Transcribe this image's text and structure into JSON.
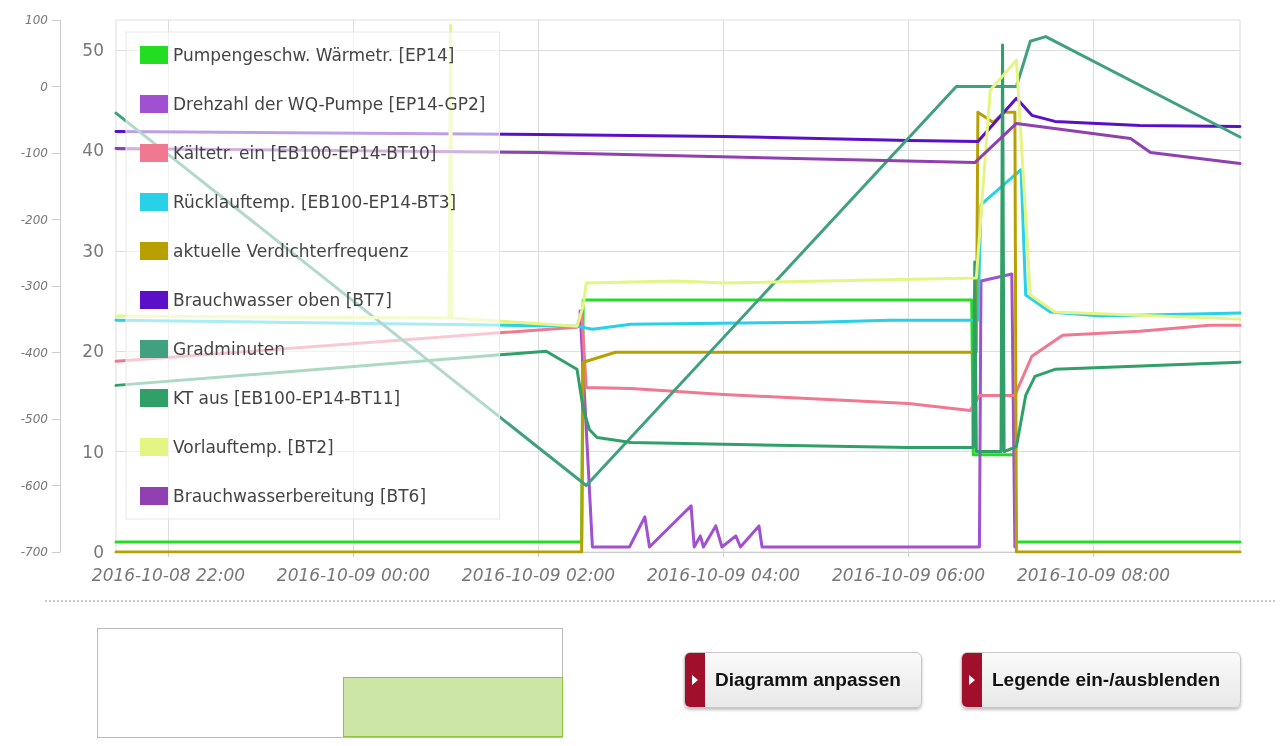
{
  "chart_data": {
    "type": "line",
    "xlim": [
      "2016-10-08T21:26",
      "2016-10-09T09:35"
    ],
    "xticks": [
      {
        "value": "2016-10-08T22:00",
        "label": "2016-10-08 22:00"
      },
      {
        "value": "2016-10-09T00:00",
        "label": "2016-10-09 00:00"
      },
      {
        "value": "2016-10-09T02:00",
        "label": "2016-10-09 02:00"
      },
      {
        "value": "2016-10-09T04:00",
        "label": "2016-10-09 04:00"
      },
      {
        "value": "2016-10-09T06:00",
        "label": "2016-10-09 06:00"
      },
      {
        "value": "2016-10-09T08:00",
        "label": "2016-10-09 08:00"
      }
    ],
    "ylim": [
      0,
      53
    ],
    "yticks": [
      0,
      10,
      20,
      30,
      40,
      50
    ],
    "y2lim": [
      -700,
      100
    ],
    "y2ticks": [
      -700,
      -600,
      -500,
      -400,
      -300,
      -200,
      -100,
      0,
      100
    ],
    "grid": true,
    "legend": "top left",
    "marker": "none",
    "line_style": "solid",
    "annotations": [
      "Diagramm anpassen",
      "Legende ein-/ausblenden"
    ],
    "series": [
      {
        "name": "Pumpengeschw. Wärmetr. [EP14]",
        "color": "#22dd22",
        "x": [
          "2016-10-08T21:26",
          "2016-10-09T02:28",
          "2016-10-09T02:29",
          "2016-10-09T06:41",
          "2016-10-09T06:42",
          "2016-10-09T07:09",
          "2016-10-09T07:10",
          "2016-10-09T09:35"
        ],
        "values": [
          1.0,
          1.0,
          25.1,
          25.1,
          9.7,
          9.7,
          1.0,
          1.0
        ]
      },
      {
        "name": "Drehzahl der WQ-Pumpe [EP14-GP2]",
        "color": "#a050d0",
        "x": [
          "2016-10-09T02:27",
          "2016-10-09T02:35",
          "2016-10-09T02:59",
          "2016-10-09T03:09",
          "2016-10-09T03:12",
          "2016-10-09T03:39",
          "2016-10-09T03:41",
          "2016-10-09T03:45",
          "2016-10-09T03:47",
          "2016-10-09T03:55",
          "2016-10-09T03:59",
          "2016-10-09T04:08",
          "2016-10-09T04:11",
          "2016-10-09T04:23",
          "2016-10-09T04:25",
          "2016-10-09T06:46",
          "2016-10-09T06:47",
          "2016-10-09T07:07",
          "2016-10-09T07:09"
        ],
        "values": [
          24.0,
          0.5,
          0.5,
          3.5,
          0.5,
          4.6,
          0.5,
          1.6,
          0.5,
          2.6,
          0.5,
          1.6,
          0.5,
          2.6,
          0.5,
          0.5,
          27.0,
          27.7,
          0.5
        ]
      },
      {
        "name": "Kältetr. ein [EB100-EP14-BT10]",
        "color": "#f07890",
        "x": [
          "2016-10-08T21:26",
          "2016-10-09T02:25",
          "2016-10-09T02:28",
          "2016-10-09T02:31",
          "2016-10-09T03:00",
          "2016-10-09T04:00",
          "2016-10-09T06:00",
          "2016-10-09T06:40",
          "2016-10-09T06:46",
          "2016-10-09T07:09",
          "2016-10-09T07:20",
          "2016-10-09T07:40",
          "2016-10-09T08:30",
          "2016-10-09T09:15",
          "2016-10-09T09:35"
        ],
        "values": [
          19.0,
          22.4,
          24.0,
          16.4,
          16.3,
          15.7,
          14.8,
          14.1,
          15.6,
          15.6,
          19.5,
          21.6,
          22.0,
          22.6,
          22.6
        ]
      },
      {
        "name": "Rücklauftemp. [EB100-EP14-BT3]",
        "color": "#28d0e8",
        "x": [
          "2016-10-08T21:26",
          "2016-10-09T02:25",
          "2016-10-09T02:35",
          "2016-10-09T03:00",
          "2016-10-09T05:00",
          "2016-10-09T05:48",
          "2016-10-09T06:45",
          "2016-10-09T06:47",
          "2016-10-09T07:13",
          "2016-10-09T07:16",
          "2016-10-09T07:32",
          "2016-10-09T08:05",
          "2016-10-09T09:35"
        ],
        "values": [
          23.1,
          22.5,
          22.2,
          22.7,
          22.9,
          23.1,
          23.1,
          34.6,
          38.1,
          25.6,
          23.9,
          23.5,
          23.8
        ]
      },
      {
        "name": "aktuelle Verdichterfrequenz",
        "color": "#b8a000",
        "x": [
          "2016-10-08T21:26",
          "2016-10-09T02:28",
          "2016-10-09T02:29",
          "2016-10-09T02:50",
          "2016-10-09T06:44",
          "2016-10-09T06:45",
          "2016-10-09T06:55",
          "2016-10-09T07:02",
          "2016-10-09T07:09",
          "2016-10-09T07:10",
          "2016-10-09T09:35"
        ],
        "values": [
          0,
          0,
          18.9,
          19.9,
          19.9,
          43.8,
          42.8,
          43.8,
          43.8,
          0,
          0
        ]
      },
      {
        "name": "Brauchwasser oben [BT7]",
        "color": "#5a10c8",
        "x": [
          "2016-10-08T21:26",
          "2016-10-09T02:00",
          "2016-10-09T04:00",
          "2016-10-09T06:00",
          "2016-10-09T06:45",
          "2016-10-09T07:10",
          "2016-10-09T07:20",
          "2016-10-09T07:35",
          "2016-10-09T08:30",
          "2016-10-09T09:35"
        ],
        "values": [
          41.9,
          41.6,
          41.4,
          41.0,
          40.9,
          45.2,
          43.5,
          42.9,
          42.5,
          42.4
        ]
      },
      {
        "name": "Gradminuten",
        "color": "#40a080",
        "axis": "y2",
        "x": [
          "2016-10-08T21:26",
          "2016-10-09T02:31",
          "2016-10-09T06:31",
          "2016-10-09T07:10",
          "2016-10-09T07:19",
          "2016-10-09T07:29",
          "2016-10-09T09:35"
        ],
        "values": [
          -40,
          -600,
          0,
          0,
          68,
          75,
          -76
        ]
      },
      {
        "name": "KT aus [EB100-EP14-BT11]",
        "color": "#30a068",
        "x": [
          "2016-10-08T21:26",
          "2016-10-09T02:05",
          "2016-10-09T02:25",
          "2016-10-09T02:29",
          "2016-10-09T02:33",
          "2016-10-09T02:38",
          "2016-10-09T03:00",
          "2016-10-09T06:00",
          "2016-10-09T06:42",
          "2016-10-09T06:43",
          "2016-10-09T06:44",
          "2016-10-09T07:00",
          "2016-10-09T07:01",
          "2016-10-09T07:02",
          "2016-10-09T07:10",
          "2016-10-09T07:16",
          "2016-10-09T07:22",
          "2016-10-09T07:35",
          "2016-10-09T09:35"
        ],
        "values": [
          16.6,
          20.0,
          18.2,
          14.3,
          12.2,
          11.4,
          10.9,
          10.4,
          10.4,
          28.9,
          10.0,
          10.0,
          50.5,
          10.0,
          10.5,
          15.6,
          17.5,
          18.2,
          18.9
        ]
      },
      {
        "name": "Vorlauftemp. [BT2]",
        "color": "#e4f584",
        "x": [
          "2016-10-08T21:26",
          "2016-10-09T01:02",
          "2016-10-09T01:03",
          "2016-10-09T01:04",
          "2016-10-09T02:25",
          "2016-10-09T02:29",
          "2016-10-09T02:31",
          "2016-10-09T03:30",
          "2016-10-09T04:00",
          "2016-10-09T06:44",
          "2016-10-09T06:53",
          "2016-10-09T07:10",
          "2016-10-09T07:15",
          "2016-10-09T07:19",
          "2016-10-09T07:35",
          "2016-10-09T09:35"
        ],
        "values": [
          23.5,
          23.3,
          52.5,
          23.3,
          22.5,
          24.5,
          26.8,
          27.0,
          26.8,
          27.3,
          46.0,
          49.0,
          36.0,
          25.6,
          23.9,
          23.2
        ]
      },
      {
        "name": "Brauchwasserbereitung [BT6]",
        "color": "#9040b0",
        "x": [
          "2016-10-08T21:26",
          "2016-10-09T02:00",
          "2016-10-09T06:43",
          "2016-10-09T07:10",
          "2016-10-09T08:24",
          "2016-10-09T08:37",
          "2016-10-09T09:35"
        ],
        "values": [
          40.2,
          39.8,
          38.8,
          42.7,
          41.2,
          39.8,
          38.7
        ]
      }
    ]
  }
}
